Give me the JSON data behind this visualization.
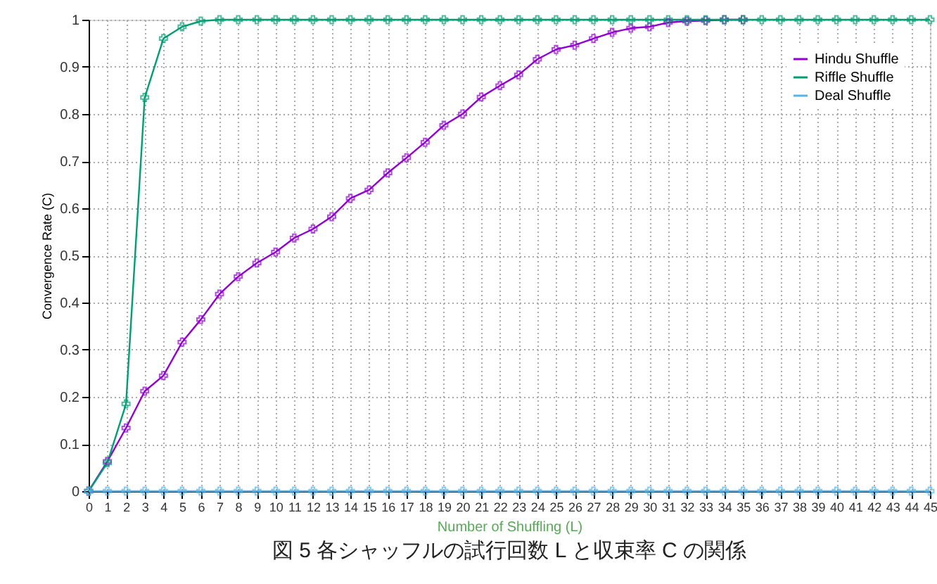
{
  "chart_data": {
    "type": "line",
    "xlabel": "Number of Shuffling (L)",
    "ylabel": "Convergence Rate (C)",
    "x": [
      0,
      1,
      2,
      3,
      4,
      5,
      6,
      7,
      8,
      9,
      10,
      11,
      12,
      13,
      14,
      15,
      16,
      17,
      18,
      19,
      20,
      21,
      22,
      23,
      24,
      25,
      26,
      27,
      28,
      29,
      30,
      31,
      32,
      33,
      34,
      35,
      36,
      37,
      38,
      39,
      40,
      41,
      42,
      43,
      44,
      45
    ],
    "series": [
      {
        "name": "Hindu Shuffle",
        "color": "#9400d3",
        "values": [
          0,
          0.063,
          0.134,
          0.212,
          0.245,
          0.316,
          0.364,
          0.418,
          0.455,
          0.484,
          0.507,
          0.537,
          0.556,
          0.582,
          0.621,
          0.639,
          0.675,
          0.707,
          0.74,
          0.776,
          0.8,
          0.836,
          0.86,
          0.883,
          0.916,
          0.937,
          0.946,
          0.96,
          0.973,
          0.982,
          0.985,
          0.994,
          0.997,
          0.998,
          1,
          1,
          null,
          null,
          null,
          null,
          null,
          null,
          null,
          null,
          null,
          null
        ]
      },
      {
        "name": "Riffle Shuffle",
        "color": "#009e73",
        "values": [
          0,
          0.06,
          0.185,
          0.835,
          0.96,
          0.985,
          0.997,
          1,
          1,
          1,
          1,
          1,
          1,
          1,
          1,
          1,
          1,
          1,
          1,
          1,
          1,
          1,
          1,
          1,
          1,
          1,
          1,
          1,
          1,
          1,
          1,
          1,
          1,
          1,
          1,
          1,
          1,
          1,
          1,
          1,
          1,
          1,
          1,
          1,
          1,
          1
        ]
      },
      {
        "name": "Deal Shuffle",
        "color": "#56b4e9",
        "values": [
          0,
          0,
          0,
          0,
          0,
          0,
          0,
          0,
          0,
          0,
          0,
          0,
          0,
          0,
          0,
          0,
          0,
          0,
          0,
          0,
          0,
          0,
          0,
          0,
          0,
          0,
          0,
          0,
          0,
          0,
          0,
          0,
          0,
          0,
          0,
          0,
          0,
          0,
          0,
          0,
          0,
          0,
          0,
          0,
          0,
          0
        ]
      }
    ],
    "xlim": [
      0,
      45
    ],
    "xticks": [
      0,
      1,
      2,
      3,
      4,
      5,
      6,
      7,
      8,
      9,
      10,
      11,
      12,
      13,
      14,
      15,
      16,
      17,
      18,
      19,
      20,
      21,
      22,
      23,
      24,
      25,
      26,
      27,
      28,
      29,
      30,
      31,
      32,
      33,
      34,
      35,
      36,
      37,
      38,
      39,
      40,
      41,
      42,
      43,
      44,
      45
    ],
    "ylim": [
      0,
      1
    ],
    "yticks": [
      0,
      0.1,
      0.2,
      0.3,
      0.4,
      0.5,
      0.6,
      0.7,
      0.8,
      0.9,
      1
    ],
    "grid": true,
    "legend": "top right",
    "marker": "cross",
    "line_style": "solid",
    "annotations": [
      "図 5 各シャッフルの試行回数 L と収束率 C の関係"
    ]
  }
}
